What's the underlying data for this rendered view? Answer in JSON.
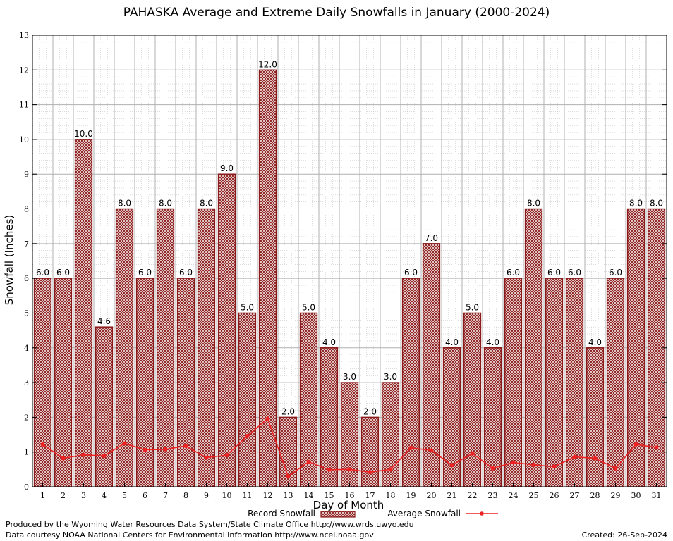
{
  "chart_data": {
    "type": "bar",
    "title": "PAHASKA Average and Extreme Daily Snowfalls in January (2000-2024)",
    "xlabel": "Day of Month",
    "ylabel": "Snowfall (Inches)",
    "ylim": [
      0,
      13
    ],
    "yticks": [
      "0",
      "1",
      "2",
      "3",
      "4",
      "5",
      "6",
      "7",
      "8",
      "9",
      "10",
      "11",
      "12",
      "13"
    ],
    "grid": true,
    "legend_position": "bottom",
    "categories": [
      "1",
      "2",
      "3",
      "4",
      "5",
      "6",
      "7",
      "8",
      "9",
      "10",
      "11",
      "12",
      "13",
      "14",
      "15",
      "16",
      "17",
      "18",
      "19",
      "20",
      "21",
      "22",
      "23",
      "24",
      "25",
      "26",
      "27",
      "28",
      "29",
      "30",
      "31"
    ],
    "series": [
      {
        "name": "Record Snowfall",
        "kind": "bar",
        "color": "#8b1a1a",
        "values": [
          6.0,
          6.0,
          10.0,
          4.6,
          8.0,
          6.0,
          8.0,
          6.0,
          8.0,
          9.0,
          5.0,
          12.0,
          2.0,
          5.0,
          4.0,
          3.0,
          2.0,
          3.0,
          6.0,
          7.0,
          4.0,
          5.0,
          4.0,
          6.0,
          8.0,
          6.0,
          6.0,
          4.0,
          6.0,
          8.0,
          8.0
        ],
        "labels": [
          "6.0",
          "6.0",
          "10.0",
          "4.6",
          "8.0",
          "6.0",
          "8.0",
          "6.0",
          "8.0",
          "9.0",
          "5.0",
          "12.0",
          "2.0",
          "5.0",
          "4.0",
          "3.0",
          "2.0",
          "3.0",
          "6.0",
          "7.0",
          "4.0",
          "5.0",
          "4.0",
          "6.0",
          "8.0",
          "6.0",
          "6.0",
          "4.0",
          "6.0",
          "8.0",
          "8.0"
        ]
      },
      {
        "name": "Average Snowfall",
        "kind": "line",
        "color": "#ee2222",
        "values": [
          1.22,
          0.82,
          0.92,
          0.89,
          1.25,
          1.06,
          1.08,
          1.17,
          0.84,
          0.91,
          1.46,
          1.96,
          0.3,
          0.72,
          0.49,
          0.5,
          0.42,
          0.5,
          1.12,
          1.05,
          0.62,
          0.96,
          0.53,
          0.7,
          0.63,
          0.58,
          0.86,
          0.82,
          0.53,
          1.22,
          1.13
        ]
      }
    ]
  },
  "footer": {
    "produced_by": "Produced by the Wyoming Water Resources Data System/State Climate Office http://www.wrds.uwyo.edu",
    "courtesy": "Data courtesy NOAA National Centers for Environmental Information http://www.ncei.noaa.gov",
    "created": "Created:  26-Sep-2024"
  }
}
